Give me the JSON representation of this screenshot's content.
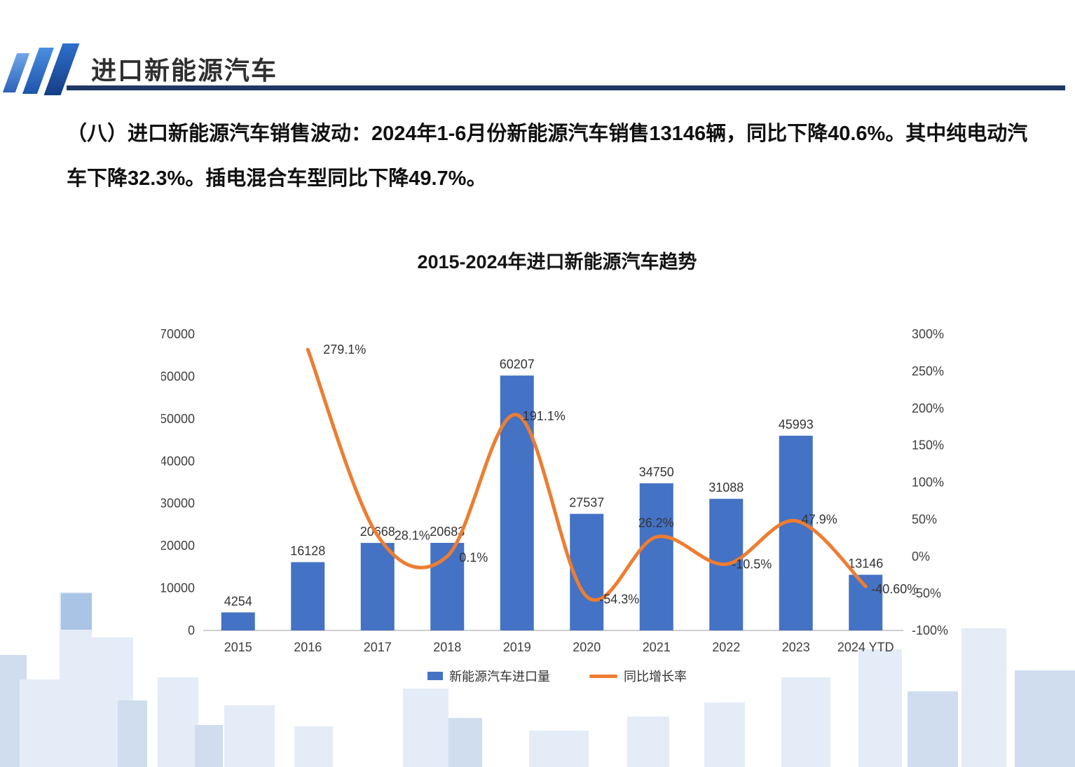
{
  "header": {
    "title": "进口新能源汽车"
  },
  "body_text": "（八）进口新能源汽车销售波动：2024年1-6月份新能源汽车销售13146辆，同比下降40.6%。其中纯电动汽车下降32.3%。插电混合车型同比下降49.7%。",
  "chart_data": {
    "type": "bar",
    "title": "2015-2024年进口新能源汽车趋势",
    "categories": [
      "2015",
      "2016",
      "2017",
      "2018",
      "2019",
      "2020",
      "2021",
      "2022",
      "2023",
      "2024 YTD"
    ],
    "series": [
      {
        "name": "新能源汽车进口量",
        "type": "bar",
        "color": "#4472C4",
        "values": [
          4254,
          16128,
          20668,
          20683,
          60207,
          27537,
          34750,
          31088,
          45993,
          13146
        ]
      },
      {
        "name": "同比增长率",
        "type": "line",
        "color": "#ED7D31",
        "values": [
          null,
          279.1,
          28.1,
          0.1,
          191.1,
          -54.3,
          26.2,
          -10.5,
          47.9,
          -40.6
        ],
        "labels": [
          "",
          "279.1%",
          "28.1%",
          "0.1%",
          "191.1%",
          "-54.3%",
          "26.2%",
          "-10.5%",
          "47.9%",
          "-40.60%"
        ]
      }
    ],
    "y_left": {
      "min": 0,
      "max": 70000,
      "step": 10000
    },
    "y_right": {
      "min": -100,
      "max": 300,
      "step": 50,
      "suffix": "%"
    },
    "grid": false,
    "legend_position": "bottom"
  }
}
